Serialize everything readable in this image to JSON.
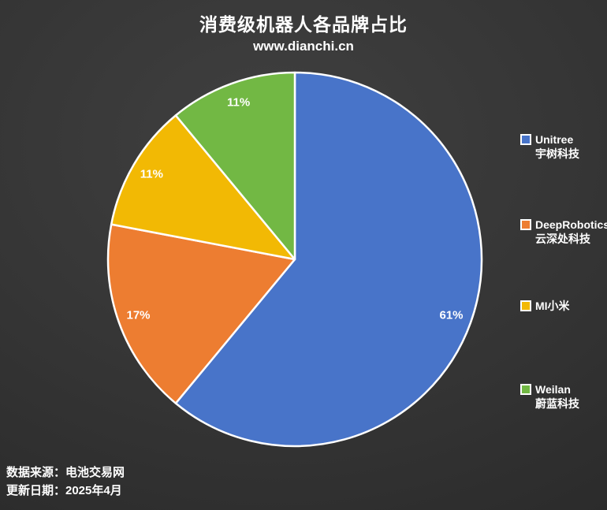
{
  "header": {
    "title": "消费级机器人各品牌占比",
    "subtitle": "www.dianchi.cn"
  },
  "footer": {
    "source": "数据来源：电池交易网",
    "updated": "更新日期：2025年4月"
  },
  "chart_data": {
    "type": "pie",
    "title": "消费级机器人各品牌占比",
    "start_angle_deg": 0,
    "direction": "clockwise",
    "legend_position": "right",
    "label_color": "#ffffff",
    "border_color": "#ffffff",
    "slices": [
      {
        "name": "Unitree",
        "sub": "宇树科技",
        "value": 61,
        "label": "61%",
        "color": "#4874C9"
      },
      {
        "name": "DeepRobotics",
        "sub": "云深处科技",
        "value": 17,
        "label": "17%",
        "color": "#ED7D31"
      },
      {
        "name": "MI小米",
        "sub": "",
        "value": 11,
        "label": "11%",
        "color": "#F2B904"
      },
      {
        "name": "Weilan",
        "sub": "蔚蓝科技",
        "value": 11,
        "label": "11%",
        "color": "#72B844"
      }
    ]
  }
}
